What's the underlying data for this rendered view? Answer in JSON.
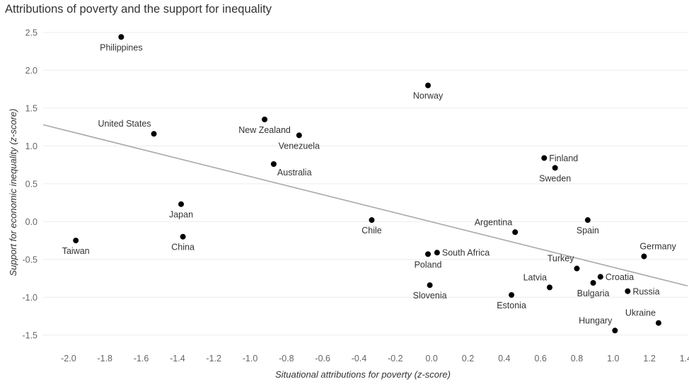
{
  "chart_data": {
    "type": "scatter",
    "title": "Attributions of poverty and the support for inequality",
    "xlabel": "Situational attributions for poverty (z-score)",
    "ylabel": "Support for economic inequality (z-score)",
    "xlim": [
      -2.14,
      1.41
    ],
    "ylim": [
      -1.67,
      2.62
    ],
    "x_ticks": [
      "-2.0",
      "-1.8",
      "-1.6",
      "-1.4",
      "-1.2",
      "-1.0",
      "-0.8",
      "-0.6",
      "-0.4",
      "-0.2",
      "0.0",
      "0.2",
      "0.4",
      "0.6",
      "0.8",
      "1.0",
      "1.2",
      "1.4"
    ],
    "y_ticks": [
      "2.5",
      "2.0",
      "1.5",
      "1.0",
      "0.5",
      "0.0",
      "-0.5",
      "-1.0",
      "-1.5"
    ],
    "grid": true,
    "trend_line": {
      "x": [
        -2.14,
        1.41
      ],
      "y": [
        1.28,
        -0.85
      ]
    },
    "points": [
      {
        "label": "Philippines",
        "x": -1.71,
        "y": 2.44,
        "pos": "below"
      },
      {
        "label": "United States",
        "x": -1.53,
        "y": 1.16,
        "pos": "above-left"
      },
      {
        "label": "Taiwan",
        "x": -1.96,
        "y": -0.25,
        "pos": "below"
      },
      {
        "label": "Japan",
        "x": -1.38,
        "y": 0.23,
        "pos": "below"
      },
      {
        "label": "China",
        "x": -1.37,
        "y": -0.2,
        "pos": "below"
      },
      {
        "label": "New Zealand",
        "x": -0.92,
        "y": 1.35,
        "pos": "below"
      },
      {
        "label": "Venezuela",
        "x": -0.73,
        "y": 1.14,
        "pos": "below"
      },
      {
        "label": "Australia",
        "x": -0.87,
        "y": 0.76,
        "pos": "below-right"
      },
      {
        "label": "Chile",
        "x": -0.33,
        "y": 0.02,
        "pos": "below"
      },
      {
        "label": "Norway",
        "x": -0.02,
        "y": 1.8,
        "pos": "below"
      },
      {
        "label": "South Africa",
        "x": 0.03,
        "y": -0.41,
        "pos": "right"
      },
      {
        "label": "Poland",
        "x": -0.02,
        "y": -0.43,
        "pos": "below"
      },
      {
        "label": "Slovenia",
        "x": -0.01,
        "y": -0.84,
        "pos": "below"
      },
      {
        "label": "Argentina",
        "x": 0.46,
        "y": -0.14,
        "pos": "above-left"
      },
      {
        "label": "Estonia",
        "x": 0.44,
        "y": -0.97,
        "pos": "below"
      },
      {
        "label": "Latvia",
        "x": 0.65,
        "y": -0.87,
        "pos": "above-left"
      },
      {
        "label": "Finland",
        "x": 0.62,
        "y": 0.84,
        "pos": "right"
      },
      {
        "label": "Sweden",
        "x": 0.68,
        "y": 0.71,
        "pos": "below"
      },
      {
        "label": "Spain",
        "x": 0.86,
        "y": 0.02,
        "pos": "below"
      },
      {
        "label": "Turkey",
        "x": 0.8,
        "y": -0.62,
        "pos": "above-left"
      },
      {
        "label": "Croatia",
        "x": 0.93,
        "y": -0.73,
        "pos": "right"
      },
      {
        "label": "Bulgaria",
        "x": 0.89,
        "y": -0.81,
        "pos": "below"
      },
      {
        "label": "Russia",
        "x": 1.08,
        "y": -0.92,
        "pos": "right"
      },
      {
        "label": "Germany",
        "x": 1.17,
        "y": -0.46,
        "pos": "above-right"
      },
      {
        "label": "Hungary",
        "x": 1.01,
        "y": -1.44,
        "pos": "above-left"
      },
      {
        "label": "Ukraine",
        "x": 1.25,
        "y": -1.34,
        "pos": "above-left"
      }
    ],
    "colors": {
      "point": "#000000",
      "trend_line": "#a8a8a8",
      "grid": "#ececec"
    }
  }
}
